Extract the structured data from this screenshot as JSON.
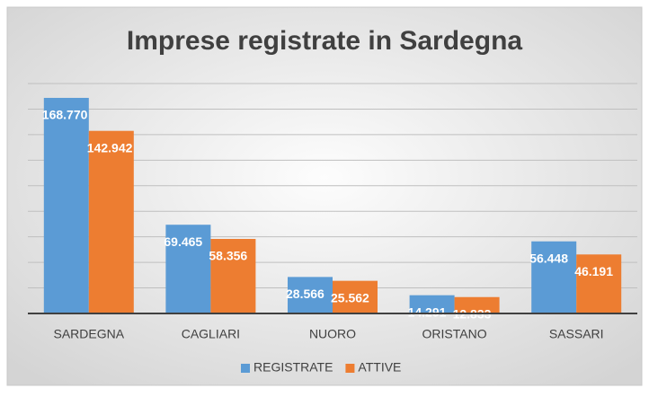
{
  "chart_data": {
    "type": "bar",
    "title": "Imprese registrate in Sardegna",
    "categories": [
      "SARDEGNA",
      "CAGLIARI",
      "NUORO",
      "ORISTANO",
      "SASSARI"
    ],
    "series": [
      {
        "name": "REGISTRATE",
        "color": "#5b9bd5",
        "values": [
          168770,
          69465,
          28566,
          14291,
          56448
        ],
        "value_labels": [
          "168.770",
          "69.465",
          "28.566",
          "14.291",
          "56.448"
        ]
      },
      {
        "name": "ATTIVE",
        "color": "#ed7d31",
        "values": [
          142942,
          58356,
          25562,
          12833,
          46191
        ],
        "value_labels": [
          "142.942",
          "58.356",
          "25.562",
          "12.833",
          "46.191"
        ]
      }
    ],
    "ylim": [
      0,
      180000
    ],
    "yticks": [
      0,
      20000,
      40000,
      60000,
      80000,
      100000,
      120000,
      140000,
      160000,
      180000
    ],
    "grid": true,
    "legend": "bottom"
  }
}
